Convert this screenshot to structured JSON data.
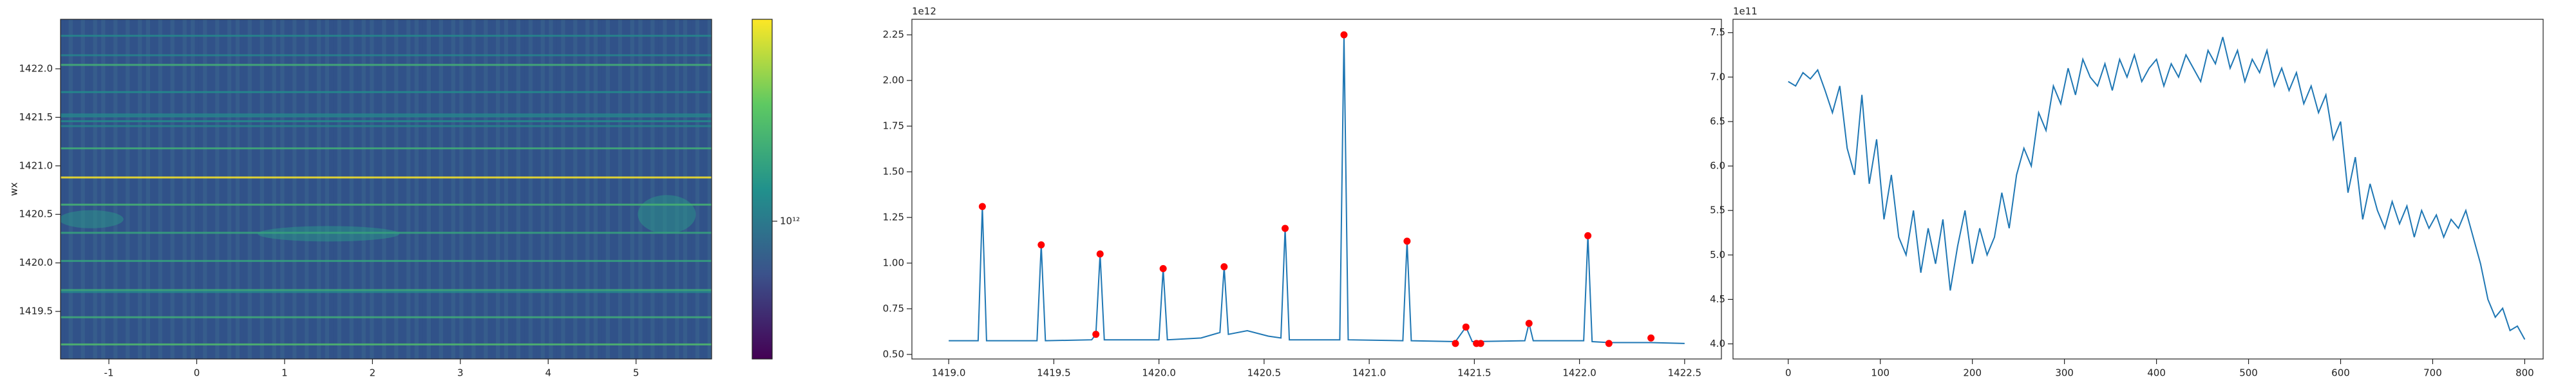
{
  "chart_data": [
    {
      "type": "heatmap",
      "ylabel": "wx",
      "xlim": [
        -1.55,
        5.86
      ],
      "ylim": [
        1419.01,
        1422.51
      ],
      "xticks": [
        -1,
        0,
        1,
        2,
        3,
        4,
        5
      ],
      "yticks": [
        1419.5,
        {
          "value": 1420.0,
          "label": "1420.0"
        },
        1420.5,
        {
          "value": 1421.0,
          "label": "1421.0"
        },
        1421.5,
        {
          "value": 1422.0,
          "label": "1422.0"
        }
      ],
      "colorbar": {
        "scale": "log",
        "colormap": "viridis",
        "clim": [
          575000000000,
          2250000000000
        ],
        "ticks": [
          {
            "value": 1000000000000,
            "label": "10¹²"
          }
        ]
      }
    },
    {
      "type": "line",
      "offset_text": "1e12",
      "xlim": [
        1418.825,
        1422.675
      ],
      "ylim": [
        0.475,
        2.335
      ],
      "xticks": [
        {
          "value": 1419.0,
          "label": "1419.0"
        },
        1419.5,
        {
          "value": 1420.0,
          "label": "1420.0"
        },
        1420.5,
        {
          "value": 1421.0,
          "label": "1421.0"
        },
        1421.5,
        {
          "value": 1422.0,
          "label": "1422.0"
        },
        1422.5
      ],
      "yticks": [
        {
          "value": 0.5,
          "label": "0.50"
        },
        0.75,
        {
          "value": 1.0,
          "label": "1.00"
        },
        1.25,
        {
          "value": 1.5,
          "label": "1.50"
        },
        1.75,
        {
          "value": 2.0,
          "label": "2.00"
        },
        2.25
      ],
      "series": [
        {
          "type": "line",
          "color": "#1f77b4",
          "x": [
            1419.0,
            1419.14,
            1419.16,
            1419.18,
            1419.42,
            1419.44,
            1419.46,
            1419.68,
            1419.7,
            1419.72,
            1419.74,
            1420.0,
            1420.02,
            1420.04,
            1420.2,
            1420.29,
            1420.31,
            1420.33,
            1420.42,
            1420.52,
            1420.58,
            1420.6,
            1420.62,
            1420.86,
            1420.88,
            1420.9,
            1421.16,
            1421.18,
            1421.2,
            1421.41,
            1421.46,
            1421.49,
            1421.74,
            1421.76,
            1421.78,
            1422.02,
            1422.04,
            1422.06,
            1422.14,
            1422.34,
            1422.5
          ],
          "values": [
            0.575,
            0.575,
            1.31,
            0.575,
            0.575,
            1.1,
            0.575,
            0.58,
            0.61,
            1.05,
            0.58,
            0.58,
            0.97,
            0.58,
            0.59,
            0.62,
            0.98,
            0.61,
            0.63,
            0.6,
            0.59,
            1.19,
            0.58,
            0.58,
            2.25,
            0.58,
            0.575,
            1.12,
            0.575,
            0.57,
            0.65,
            0.57,
            0.575,
            0.67,
            0.575,
            0.575,
            1.15,
            0.57,
            0.565,
            0.565,
            0.56
          ]
        },
        {
          "type": "scatter",
          "color": "#ff0000",
          "x": [
            1419.16,
            1419.44,
            1419.7,
            1419.72,
            1420.02,
            1420.31,
            1420.6,
            1420.88,
            1421.18,
            1421.41,
            1421.46,
            1421.51,
            1421.53,
            1421.76,
            1422.04,
            1422.14,
            1422.34
          ],
          "values": [
            1.31,
            1.1,
            0.61,
            1.05,
            0.97,
            0.98,
            1.19,
            2.25,
            1.12,
            0.56,
            0.65,
            0.56,
            0.56,
            0.67,
            1.15,
            0.56,
            0.59
          ]
        }
      ]
    },
    {
      "type": "line",
      "offset_text": "1e11",
      "xlim": [
        -60,
        820
      ],
      "ylim": [
        3.83,
        7.65
      ],
      "xticks": [
        0,
        100,
        200,
        300,
        400,
        500,
        600,
        700,
        800
      ],
      "yticks": [
        {
          "value": 4.0,
          "label": "4.0"
        },
        4.5,
        {
          "value": 5.0,
          "label": "5.0"
        },
        5.5,
        {
          "value": 6.0,
          "label": "6.0"
        },
        6.5,
        {
          "value": 7.0,
          "label": "7.0"
        },
        7.5
      ],
      "series": [
        {
          "type": "line",
          "color": "#1f77b4",
          "x": [
            0,
            8,
            16,
            24,
            32,
            40,
            48,
            56,
            64,
            72,
            80,
            88,
            96,
            104,
            112,
            120,
            128,
            136,
            144,
            152,
            160,
            168,
            176,
            184,
            192,
            200,
            208,
            216,
            224,
            232,
            240,
            248,
            256,
            264,
            272,
            280,
            288,
            296,
            304,
            312,
            320,
            328,
            336,
            344,
            352,
            360,
            368,
            376,
            384,
            392,
            400,
            408,
            416,
            424,
            432,
            440,
            448,
            456,
            464,
            472,
            480,
            488,
            496,
            504,
            512,
            520,
            528,
            536,
            544,
            552,
            560,
            568,
            576,
            584,
            592,
            600,
            608,
            616,
            624,
            632,
            640,
            648,
            656,
            664,
            672,
            680,
            688,
            696,
            704,
            712,
            720,
            728,
            736,
            744,
            752,
            760,
            768,
            776,
            784,
            792,
            800
          ],
          "values": [
            6.95,
            6.9,
            7.05,
            6.98,
            7.08,
            6.85,
            6.6,
            6.9,
            6.2,
            5.9,
            6.8,
            5.8,
            6.3,
            5.4,
            5.9,
            5.2,
            5.0,
            5.5,
            4.8,
            5.3,
            4.9,
            5.4,
            4.6,
            5.1,
            5.5,
            4.9,
            5.3,
            5.0,
            5.2,
            5.7,
            5.3,
            5.9,
            6.2,
            6.0,
            6.6,
            6.4,
            6.9,
            6.7,
            7.1,
            6.8,
            7.2,
            7.0,
            6.9,
            7.15,
            6.85,
            7.2,
            7.0,
            7.25,
            6.95,
            7.1,
            7.2,
            6.9,
            7.15,
            7.0,
            7.25,
            7.1,
            6.95,
            7.3,
            7.15,
            7.45,
            7.1,
            7.3,
            6.95,
            7.2,
            7.05,
            7.3,
            6.9,
            7.1,
            6.85,
            7.05,
            6.7,
            6.9,
            6.6,
            6.8,
            6.3,
            6.5,
            5.7,
            6.1,
            5.4,
            5.8,
            5.5,
            5.3,
            5.6,
            5.35,
            5.55,
            5.2,
            5.5,
            5.3,
            5.45,
            5.2,
            5.4,
            5.3,
            5.5,
            5.2,
            4.9,
            4.5,
            4.3,
            4.4,
            4.15,
            4.2,
            4.05
          ]
        }
      ]
    }
  ]
}
